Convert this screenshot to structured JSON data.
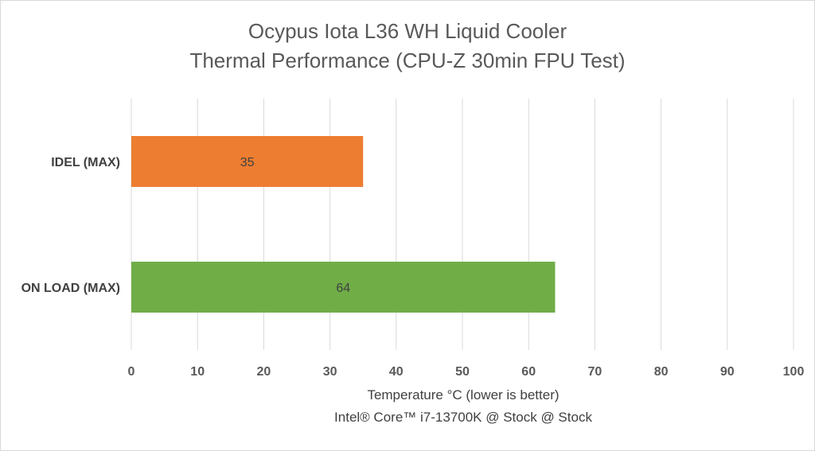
{
  "chart_data": {
    "type": "bar",
    "orientation": "horizontal",
    "title": "Ocypus Iota L36 WH Liquid Cooler",
    "subtitle": "Thermal Performance (CPU-Z 30min FPU Test)",
    "xlabel": "Temperature °C  (lower is better)",
    "xlabel2": "Intel® Core™ i7-13700K @ Stock @ Stock",
    "ylabel": "",
    "categories": [
      "IDEL (MAX)",
      "ON LOAD (MAX)"
    ],
    "values": [
      35,
      64
    ],
    "colors": [
      "#ed7d31",
      "#70ad47"
    ],
    "xlim": [
      0,
      100
    ],
    "xticks": [
      0,
      10,
      20,
      30,
      40,
      50,
      60,
      70,
      80,
      90,
      100
    ],
    "grid": true,
    "legend": "none",
    "data_labels": true
  }
}
